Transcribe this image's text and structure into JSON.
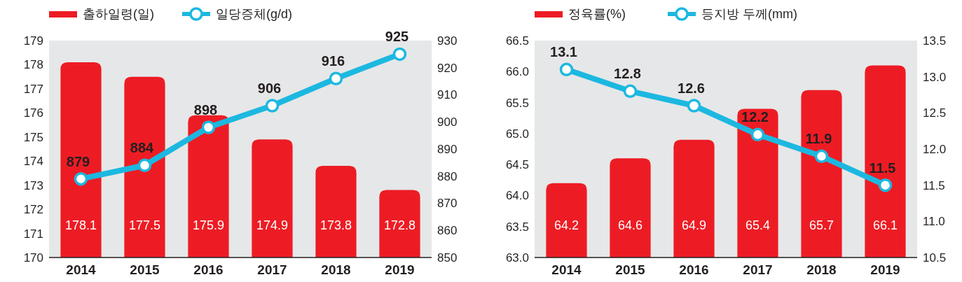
{
  "chart_data": [
    {
      "type": "bar",
      "categories": [
        "2014",
        "2015",
        "2016",
        "2017",
        "2018",
        "2019"
      ],
      "legend": "top left",
      "data_labels": true,
      "marker": "circle",
      "ylim": [
        170,
        179
      ],
      "yticks": [
        170,
        171,
        172,
        173,
        174,
        175,
        176,
        177,
        178,
        179
      ],
      "y2lim": [
        850,
        930
      ],
      "y2ticks": [
        850,
        860,
        870,
        880,
        890,
        900,
        910,
        920,
        930
      ],
      "series": [
        {
          "name": "출하일령(일)",
          "color": "#ed1c24",
          "values": [
            178.1,
            177.5,
            175.9,
            174.9,
            173.8,
            172.8
          ]
        },
        {
          "type": "line",
          "axis": "y2",
          "name": "일당증체(g/d)",
          "color": "#1cb8e0",
          "values": [
            879,
            884,
            898,
            906,
            916,
            925
          ]
        }
      ]
    },
    {
      "type": "bar",
      "categories": [
        "2014",
        "2015",
        "2016",
        "2017",
        "2018",
        "2019"
      ],
      "legend": "top left",
      "data_labels": true,
      "marker": "circle",
      "ylim": [
        63,
        66.5
      ],
      "yticks": [
        {
          "value": 63,
          "label": "63.0"
        },
        63.5,
        {
          "value": 64,
          "label": "64.0"
        },
        64.5,
        {
          "value": 65,
          "label": "65.0"
        },
        65.5,
        {
          "value": 66,
          "label": "66.0"
        },
        66.5
      ],
      "y2lim": [
        10.5,
        13.5
      ],
      "y2ticks": [
        10.5,
        {
          "value": 11,
          "label": "11.0"
        },
        11.5,
        {
          "value": 12,
          "label": "12.0"
        },
        12.5,
        {
          "value": 13,
          "label": "13.0"
        },
        13.5
      ],
      "series": [
        {
          "name": "정육률(%)",
          "color": "#ed1c24",
          "values": [
            64.2,
            64.6,
            64.9,
            65.4,
            65.7,
            66.1
          ]
        },
        {
          "type": "line",
          "axis": "y2",
          "name": "등지방 두께(mm)",
          "color": "#1cb8e0",
          "values": [
            13.1,
            12.8,
            12.6,
            12.2,
            11.9,
            11.5
          ]
        }
      ]
    }
  ]
}
